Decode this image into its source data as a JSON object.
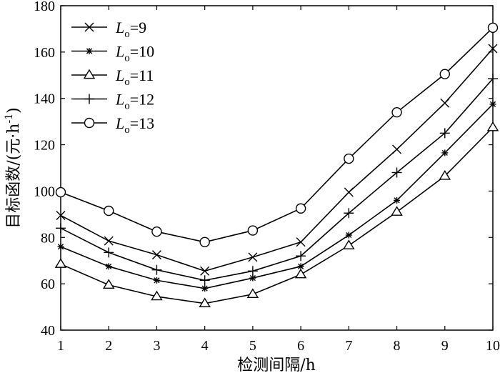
{
  "chart_data": {
    "type": "line",
    "xlabel": "检测间隔/h",
    "ylabel": "目标函数/(元·h",
    "ylabel_sup": "-1",
    "ylabel_close": ")",
    "xlim": [
      1,
      10
    ],
    "ylim": [
      40,
      180
    ],
    "xticks": [
      "1",
      "2",
      "3",
      "4",
      "5",
      "6",
      "7",
      "8",
      "9",
      "10"
    ],
    "yticks": [
      "40",
      "60",
      "80",
      "100",
      "120",
      "140",
      "160",
      "180"
    ],
    "grid": false,
    "legend_position": "top-left",
    "x": [
      1,
      2,
      3,
      4,
      5,
      6,
      7,
      8,
      9,
      10
    ],
    "series": [
      {
        "name": "L",
        "sub": "o",
        "value_label": "=9",
        "marker": "x",
        "values": [
          89.5,
          78.5,
          72.5,
          65.5,
          71.5,
          78,
          99.5,
          118,
          138,
          161.5
        ]
      },
      {
        "name": "L",
        "sub": "o",
        "value_label": "=10",
        "marker": "asterisk",
        "values": [
          76,
          67.5,
          61.5,
          58,
          62.5,
          67.5,
          81,
          96,
          116.5,
          137.5
        ]
      },
      {
        "name": "L",
        "sub": "o",
        "value_label": "=11",
        "marker": "triangle",
        "values": [
          68.5,
          59.5,
          54.5,
          51.5,
          55.5,
          64,
          76.5,
          91,
          106.5,
          127.5
        ]
      },
      {
        "name": "L",
        "sub": "o",
        "value_label": "=12",
        "marker": "plus",
        "values": [
          84,
          73.5,
          66,
          61.5,
          65.5,
          72,
          90.5,
          108,
          125,
          148.5
        ]
      },
      {
        "name": "L",
        "sub": "o",
        "value_label": "=13",
        "marker": "circle",
        "values": [
          99.5,
          91.5,
          82.5,
          78,
          83,
          92.5,
          114,
          134,
          150.5,
          170.5
        ]
      }
    ]
  }
}
